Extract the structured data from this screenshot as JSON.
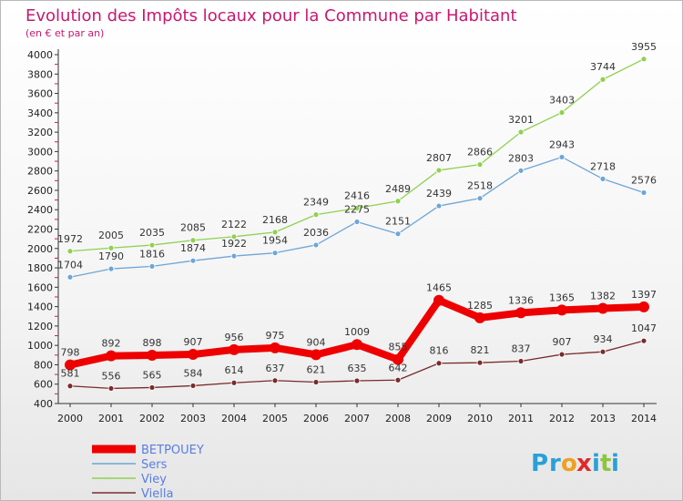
{
  "chart_data": {
    "type": "line",
    "title": "Evolution des Impôts locaux pour la Commune par Habitant",
    "subtitle": "(en € et par an)",
    "xlabel": "",
    "ylabel": "",
    "x": [
      "2000",
      "2001",
      "2002",
      "2003",
      "2004",
      "2005",
      "2006",
      "2007",
      "2008",
      "2009",
      "2010",
      "2011",
      "2012",
      "2013",
      "2014"
    ],
    "ylim": [
      400,
      4000
    ],
    "yticks": [
      400,
      600,
      800,
      1000,
      1200,
      1400,
      1600,
      1800,
      2000,
      2200,
      2400,
      2600,
      2800,
      3000,
      3200,
      3400,
      3600,
      3800,
      4000
    ],
    "grid": false,
    "legend_position": "bottom-left",
    "series": [
      {
        "name": "Viey",
        "color": "#8fd14f",
        "values": [
          1972,
          2005,
          2035,
          2085,
          2122,
          2168,
          2349,
          2416,
          2489,
          2807,
          2866,
          3201,
          3403,
          3744,
          3955
        ]
      },
      {
        "name": "Sers",
        "color": "#6ea6d6",
        "values": [
          1704,
          1790,
          1816,
          1874,
          1922,
          1954,
          2036,
          2275,
          2151,
          2439,
          2518,
          2803,
          2943,
          2718,
          2576
        ]
      },
      {
        "name": "Viella",
        "color": "#7a2b2b",
        "values": [
          581,
          556,
          565,
          584,
          614,
          637,
          621,
          635,
          642,
          816,
          821,
          837,
          907,
          934,
          1047
        ]
      },
      {
        "name": "BETPOUEY",
        "color": "#ee0000",
        "values": [
          798,
          892,
          898,
          907,
          956,
          975,
          904,
          1009,
          855,
          1465,
          1285,
          1336,
          1365,
          1382,
          1397
        ]
      }
    ],
    "legend": [
      {
        "name": "BETPOUEY",
        "color": "#ee0000",
        "text_color": "#5a7ee0"
      },
      {
        "name": "Sers",
        "color": "#6ea6d6",
        "text_color": "#5a7ee0"
      },
      {
        "name": "Viey",
        "color": "#8fd14f",
        "text_color": "#5a7ee0"
      },
      {
        "name": "Viella",
        "color": "#7a2b2b",
        "text_color": "#5a7ee0"
      }
    ]
  },
  "logo": {
    "letters": [
      {
        "ch": "P",
        "color": "#2aa0d8"
      },
      {
        "ch": "r",
        "color": "#2aa0d8"
      },
      {
        "ch": "o",
        "color": "#f0a020"
      },
      {
        "ch": "x",
        "color": "#e02828"
      },
      {
        "ch": "i",
        "color": "#2aa0d8"
      },
      {
        "ch": "t",
        "color": "#8cc63f"
      },
      {
        "ch": "i",
        "color": "#2aa0d8"
      }
    ]
  }
}
